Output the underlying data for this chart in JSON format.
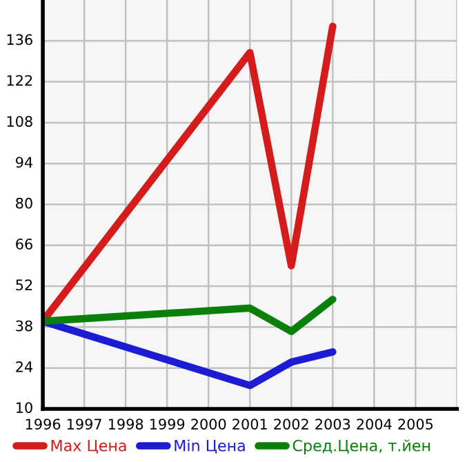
{
  "chart_data": {
    "type": "line",
    "x": [
      1996,
      2001,
      2002,
      2003
    ],
    "series": [
      {
        "name": "Max Цена",
        "color": "#d41c1c",
        "values": [
          40,
          132,
          59,
          141
        ]
      },
      {
        "name": "Min Цена",
        "color": "#1c1cd4",
        "values": [
          40,
          18,
          26,
          29.5
        ]
      },
      {
        "name": "Сред.Цена, т.йен",
        "color": "#0a800a",
        "values": [
          40,
          44.5,
          36.5,
          47.5
        ]
      }
    ],
    "xlim": [
      1996,
      2006
    ],
    "xticks": [
      1996,
      1997,
      1998,
      1999,
      2000,
      2001,
      2002,
      2003,
      2004,
      2005,
      {
        "value": 2006,
        "label": null
      }
    ],
    "ylim": [
      10,
      150
    ],
    "yticks": [
      10,
      24,
      38,
      52,
      66,
      80,
      94,
      108,
      122,
      136
    ],
    "grid": true,
    "legend": "bottom",
    "marker": "none",
    "line_style": "solid"
  }
}
